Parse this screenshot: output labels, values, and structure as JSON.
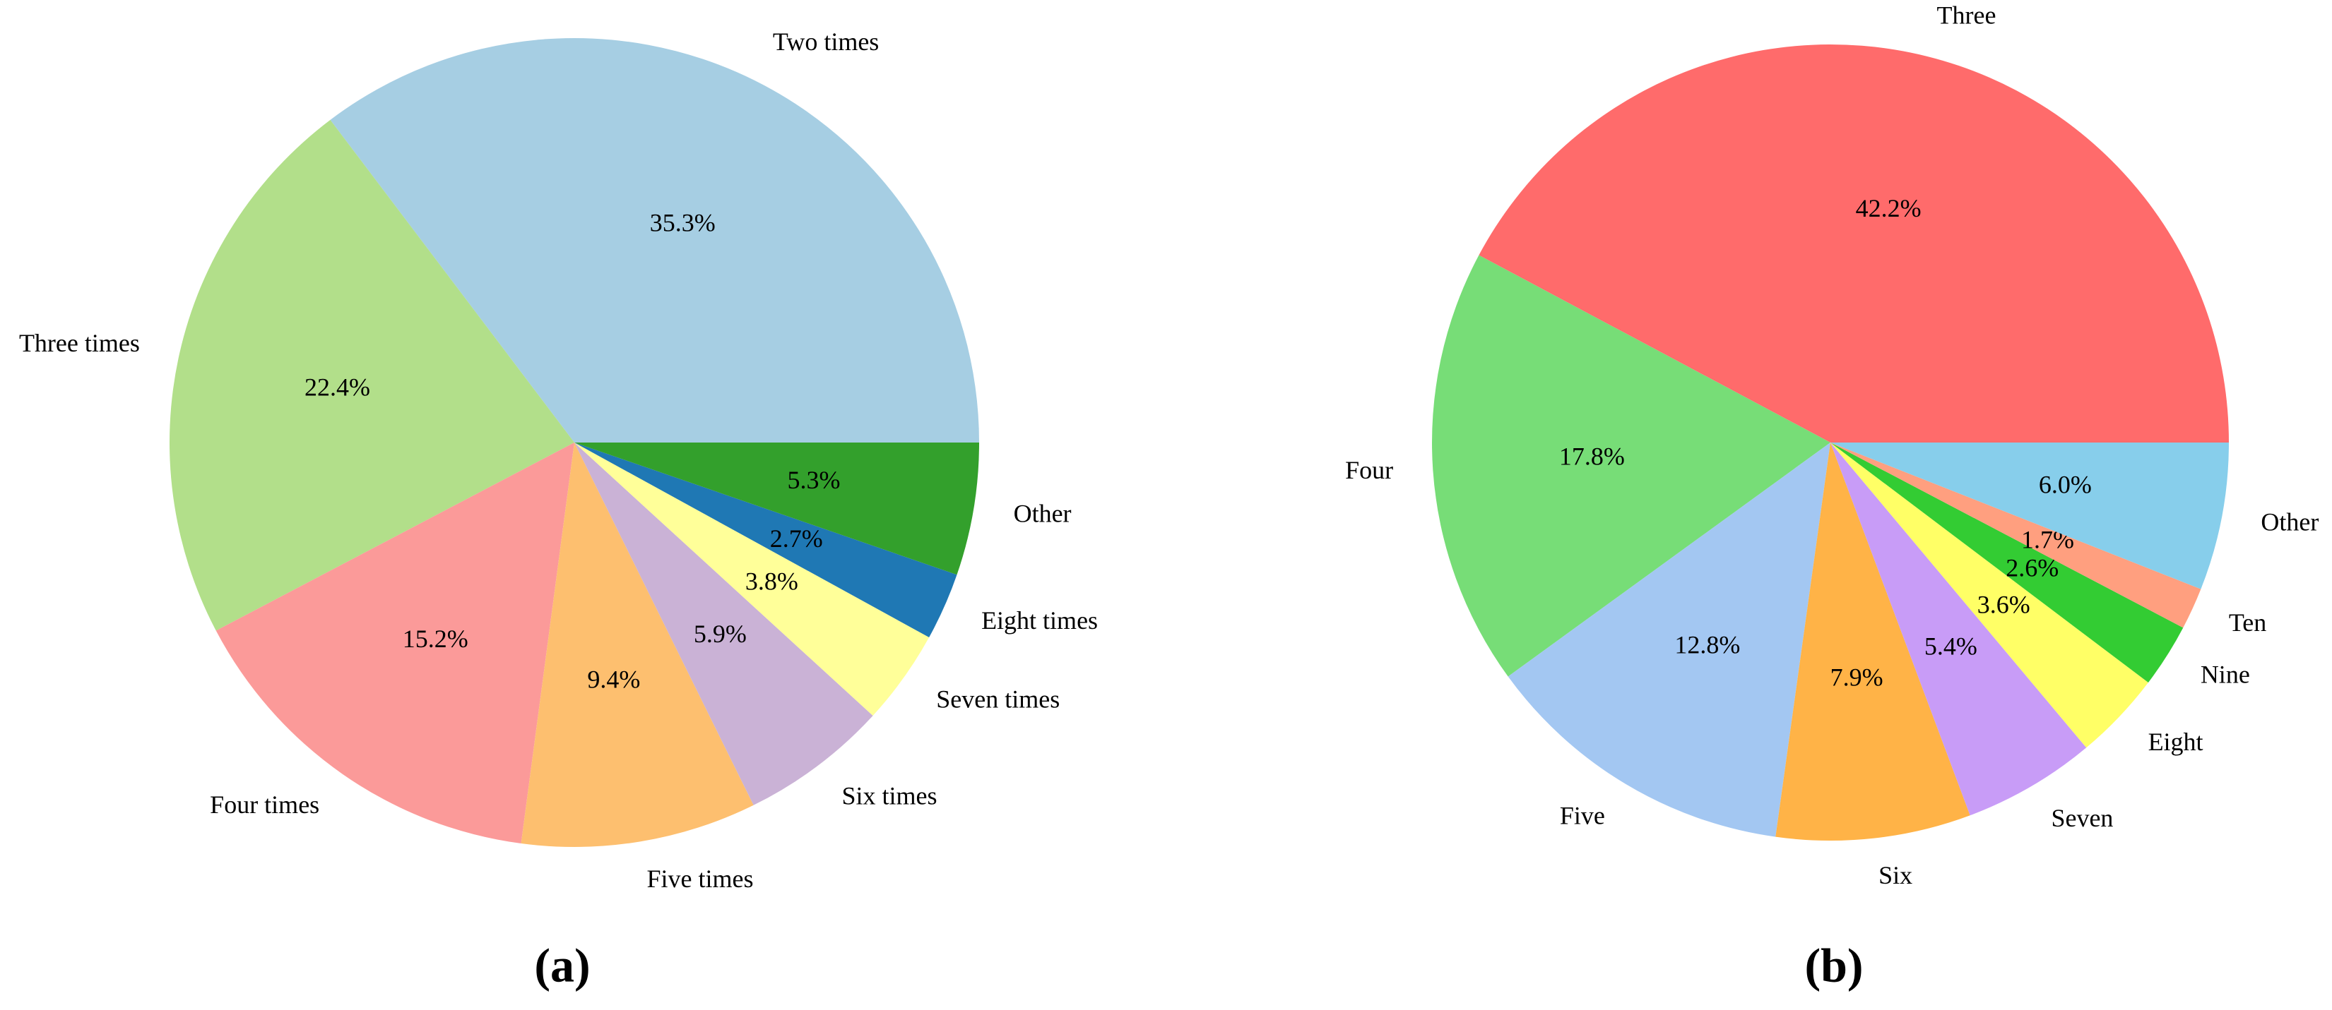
{
  "chart_data": [
    {
      "type": "pie",
      "caption": "(a)",
      "categories": [
        "Two times",
        "Three times",
        "Four times",
        "Five times",
        "Six times",
        "Seven times",
        "Eight times",
        "Other"
      ],
      "values": [
        35.3,
        22.4,
        15.2,
        9.4,
        5.9,
        3.8,
        2.7,
        5.3
      ],
      "value_labels": [
        "35.3%",
        "22.4%",
        "15.2%",
        "9.4%",
        "5.9%",
        "3.8%",
        "2.7%",
        "5.3%"
      ],
      "colors": [
        "#a6cee3",
        "#b2df8a",
        "#fb9a99",
        "#fdbf6f",
        "#cab2d6",
        "#ffff99",
        "#1f78b4",
        "#33a02c"
      ]
    },
    {
      "type": "pie",
      "caption": "(b)",
      "categories": [
        "Three",
        "Four",
        "Five",
        "Six",
        "Seven",
        "Eight",
        "Nine",
        "Ten",
        "Other"
      ],
      "values": [
        42.2,
        17.8,
        12.8,
        7.9,
        5.4,
        3.6,
        2.6,
        1.7,
        6.0
      ],
      "value_labels": [
        "42.2%",
        "17.8%",
        "12.8%",
        "7.9%",
        "5.4%",
        "3.6%",
        "2.6%",
        "1.7%",
        "6.0%"
      ],
      "colors": [
        "#ff6b6b",
        "#77dd77",
        "#a3c7f2",
        "#ffb347",
        "#c89cf7",
        "#ffff66",
        "#33cc33",
        "#ff9f7f",
        "#87ceeb"
      ]
    }
  ]
}
